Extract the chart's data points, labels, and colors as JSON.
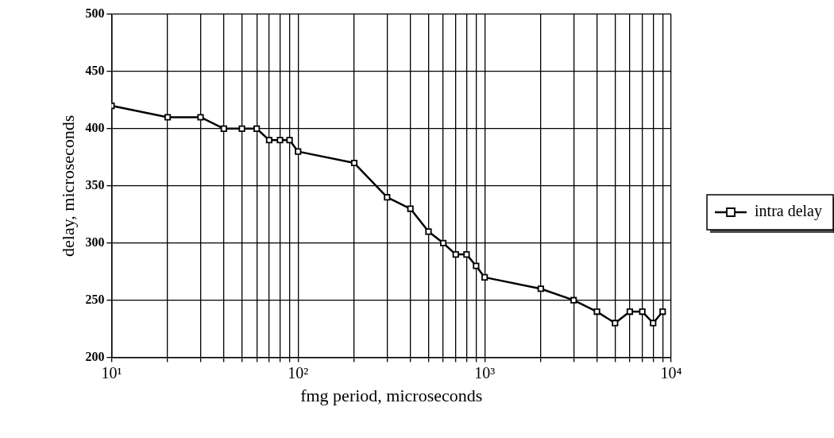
{
  "chart_data": {
    "type": "line",
    "xlabel": "fmg period, microseconds",
    "ylabel": "delay, microseconds",
    "log": "x",
    "x": [
      10,
      20,
      30,
      40,
      50,
      60,
      70,
      80,
      90,
      100,
      200,
      300,
      400,
      500,
      600,
      700,
      800,
      900,
      1000,
      2000,
      3000,
      4000,
      5000,
      6000,
      7000,
      8000,
      9000
    ],
    "series": [
      {
        "name": "intra delay",
        "color": "#000000",
        "values": [
          420,
          410,
          410,
          400,
          400,
          400,
          390,
          390,
          390,
          380,
          370,
          340,
          330,
          310,
          300,
          290,
          290,
          280,
          270,
          260,
          250,
          240,
          230,
          240,
          240,
          230,
          240
        ]
      }
    ],
    "xlim": [
      10,
      10000
    ],
    "xticks": [
      {
        "value": 10,
        "label": "10¹"
      },
      {
        "value": 20,
        "label": null
      },
      {
        "value": 30,
        "label": null
      },
      {
        "value": 40,
        "label": null
      },
      {
        "value": 50,
        "label": null
      },
      {
        "value": 60,
        "label": null
      },
      {
        "value": 70,
        "label": null
      },
      {
        "value": 80,
        "label": null
      },
      {
        "value": 90,
        "label": null
      },
      {
        "value": 100,
        "label": "10²"
      },
      {
        "value": 200,
        "label": null
      },
      {
        "value": 300,
        "label": null
      },
      {
        "value": 400,
        "label": null
      },
      {
        "value": 500,
        "label": null
      },
      {
        "value": 600,
        "label": null
      },
      {
        "value": 700,
        "label": null
      },
      {
        "value": 800,
        "label": null
      },
      {
        "value": 900,
        "label": null
      },
      {
        "value": 1000,
        "label": "10³"
      },
      {
        "value": 2000,
        "label": null
      },
      {
        "value": 3000,
        "label": null
      },
      {
        "value": 4000,
        "label": null
      },
      {
        "value": 5000,
        "label": null
      },
      {
        "value": 6000,
        "label": null
      },
      {
        "value": 7000,
        "label": null
      },
      {
        "value": 8000,
        "label": null
      },
      {
        "value": 9000,
        "label": null
      },
      {
        "value": 10000,
        "label": "10⁴"
      }
    ],
    "ylim": [
      200,
      500
    ],
    "yticks": [
      200,
      250,
      300,
      350,
      400,
      450,
      500
    ],
    "grid": true,
    "legend": "right",
    "marker": "square",
    "line_style": "solid"
  }
}
